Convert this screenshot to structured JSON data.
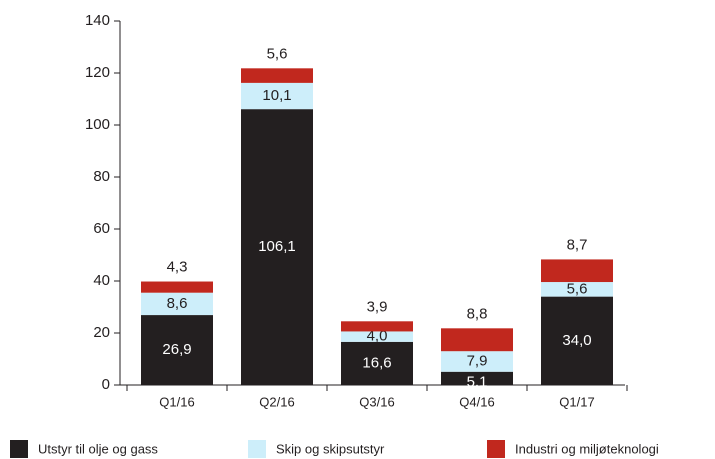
{
  "chart_data": {
    "type": "stacked_bar",
    "categories": [
      "Q1/16",
      "Q2/16",
      "Q3/16",
      "Q4/16",
      "Q1/17"
    ],
    "series": [
      {
        "name": "Utstyr til olje og gass",
        "color": "#231f20",
        "values": [
          26.9,
          106.1,
          16.6,
          5.1,
          34.0
        ],
        "value_labels": [
          "26,9",
          "106,1",
          "16,6",
          "5,1",
          "34,0"
        ]
      },
      {
        "name": "Skip og skipsutstyr",
        "color": "#cdeefa",
        "values": [
          8.6,
          10.1,
          4.0,
          7.9,
          5.6
        ],
        "value_labels": [
          "8,6",
          "10,1",
          "4,0",
          "7,9",
          "5,6"
        ]
      },
      {
        "name": "Industri og miljøteknologi",
        "color": "#c1281e",
        "values": [
          4.3,
          5.6,
          3.9,
          8.8,
          8.7
        ],
        "value_labels": [
          "4,3",
          "5,6",
          "3,9",
          "8,8",
          "8,7"
        ]
      }
    ],
    "ylim": [
      0,
      140
    ],
    "yticks": [
      0,
      20,
      40,
      60,
      80,
      100,
      120,
      140
    ]
  }
}
